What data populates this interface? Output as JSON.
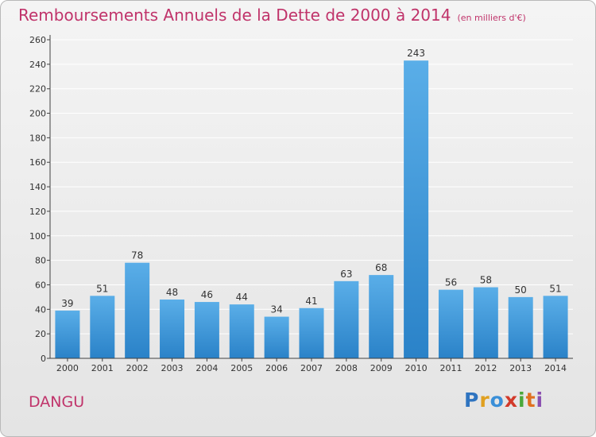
{
  "header": {
    "title": "Remboursements Annuels de la Dette de 2000 à 2014",
    "unit": "(en milliers d'€)"
  },
  "footer": {
    "commune": "DANGU",
    "logo_text": "Proxiti"
  },
  "colors": {
    "title": "#c0336a",
    "bar_light": "#5aaee8",
    "bar_dark": "#2a82c8",
    "grid": "#ffffff",
    "axis": "#404040"
  },
  "chart_data": {
    "type": "bar",
    "title": "Remboursements Annuels de la Dette de 2000 à 2014",
    "subtitle": "(en milliers d'€)",
    "xlabel": "",
    "ylabel": "",
    "categories": [
      "2000",
      "2001",
      "2002",
      "2003",
      "2004",
      "2005",
      "2006",
      "2007",
      "2008",
      "2009",
      "2010",
      "2011",
      "2012",
      "2013",
      "2014"
    ],
    "values": [
      39,
      51,
      78,
      48,
      46,
      44,
      34,
      41,
      63,
      68,
      243,
      56,
      58,
      50,
      51
    ],
    "ylim": [
      0,
      260
    ],
    "yticks": [
      0,
      20,
      40,
      60,
      80,
      100,
      120,
      140,
      160,
      180,
      200,
      220,
      240,
      260
    ],
    "grid": true,
    "data_labels": true
  }
}
